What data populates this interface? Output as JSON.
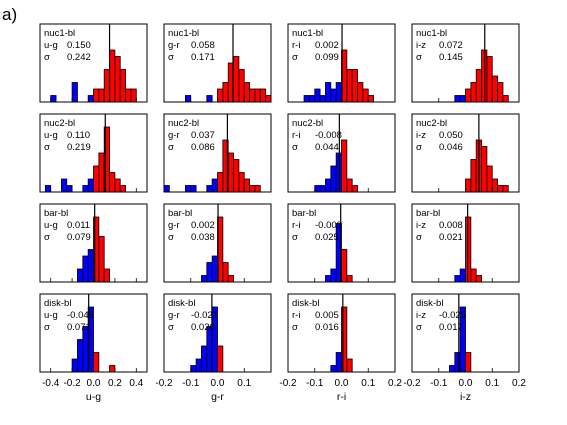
{
  "figure_label": "a)",
  "chart_data": {
    "type": "bar",
    "subtype": "histogram-grid",
    "colors": {
      "negative": "#0000ff",
      "positive": "#ff0000",
      "outline": "#000000"
    },
    "columns": [
      {
        "xlabel": "u-g",
        "xlim": [
          -0.5,
          0.5
        ],
        "ticks": [
          -0.4,
          -0.2,
          0.0,
          0.2,
          0.4
        ],
        "tick_labels": [
          "-0.4",
          "-0.2",
          "0.0",
          "0.2",
          "0.4"
        ],
        "bin_width": 0.05
      },
      {
        "xlabel": "g-r",
        "xlim": [
          -0.2,
          0.2
        ],
        "ticks": [
          -0.2,
          -0.1,
          0.0,
          0.1,
          0.2
        ],
        "tick_labels": [
          "-0.2",
          "-0.1",
          "0.0",
          "0.1",
          ""
        ],
        "bin_width": 0.02
      },
      {
        "xlabel": "r-i",
        "xlim": [
          -0.2,
          0.2
        ],
        "ticks": [
          -0.2,
          -0.1,
          0.0,
          0.1,
          0.2
        ],
        "tick_labels": [
          "-0.2",
          "-0.1",
          "0.0",
          "0.1",
          "0.2"
        ],
        "bin_width": 0.02
      },
      {
        "xlabel": "i-z",
        "xlim": [
          -0.2,
          0.2
        ],
        "ticks": [
          -0.2,
          -0.1,
          0.0,
          0.1,
          0.2
        ],
        "tick_labels": [
          "-0.2",
          "-0.1",
          "0.0",
          "0.1",
          "0.2"
        ],
        "bin_width": 0.02
      }
    ],
    "rows": [
      {
        "region": "nuc1-bl",
        "panels": [
          {
            "color": "u-g",
            "mean": "0.150",
            "sigma": "0.242",
            "bins": [
              [
                -0.4,
                1
              ],
              [
                -0.2,
                3
              ],
              [
                -0.05,
                1
              ],
              [
                0.0,
                2
              ],
              [
                0.05,
                2
              ],
              [
                0.1,
                5
              ],
              [
                0.15,
                8
              ],
              [
                0.2,
                7
              ],
              [
                0.25,
                5
              ],
              [
                0.3,
                2
              ],
              [
                0.35,
                2
              ]
            ]
          },
          {
            "color": "g-r",
            "mean": "0.058",
            "sigma": "0.171",
            "bins": [
              [
                -0.12,
                1
              ],
              [
                -0.04,
                1
              ],
              [
                0.0,
                2
              ],
              [
                0.02,
                3
              ],
              [
                0.04,
                6
              ],
              [
                0.06,
                7
              ],
              [
                0.08,
                5
              ],
              [
                0.1,
                3
              ],
              [
                0.12,
                2
              ],
              [
                0.14,
                2
              ],
              [
                0.16,
                2
              ],
              [
                0.18,
                1
              ]
            ]
          },
          {
            "color": "r-i",
            "mean": "0.002",
            "sigma": "0.099",
            "bins": [
              [
                -0.14,
                1
              ],
              [
                -0.12,
                1
              ],
              [
                -0.1,
                2
              ],
              [
                -0.08,
                1
              ],
              [
                -0.06,
                3
              ],
              [
                -0.04,
                2
              ],
              [
                -0.02,
                3
              ],
              [
                0.0,
                8
              ],
              [
                0.02,
                5
              ],
              [
                0.04,
                5
              ],
              [
                0.06,
                3
              ],
              [
                0.08,
                2
              ],
              [
                0.1,
                1
              ]
            ]
          },
          {
            "color": "i-z",
            "mean": "0.072",
            "sigma": "0.145",
            "bins": [
              [
                -0.04,
                1
              ],
              [
                -0.02,
                1
              ],
              [
                0.0,
                2
              ],
              [
                0.02,
                3
              ],
              [
                0.04,
                5
              ],
              [
                0.06,
                8
              ],
              [
                0.08,
                7
              ],
              [
                0.1,
                4
              ],
              [
                0.12,
                3
              ],
              [
                0.14,
                1
              ]
            ]
          }
        ]
      },
      {
        "region": "nuc2-bl",
        "panels": [
          {
            "color": "u-g",
            "mean": "0.110",
            "sigma": "0.219",
            "bins": [
              [
                -0.45,
                1
              ],
              [
                -0.3,
                2
              ],
              [
                -0.25,
                1
              ],
              [
                -0.1,
                1
              ],
              [
                -0.05,
                2
              ],
              [
                0.0,
                4
              ],
              [
                0.05,
                6
              ],
              [
                0.1,
                10
              ],
              [
                0.15,
                3
              ],
              [
                0.2,
                2
              ],
              [
                0.25,
                1
              ]
            ]
          },
          {
            "color": "g-r",
            "mean": "0.037",
            "sigma": "0.086",
            "bins": [
              [
                -0.2,
                1
              ],
              [
                -0.12,
                1
              ],
              [
                -0.1,
                1
              ],
              [
                -0.04,
                1
              ],
              [
                -0.02,
                2
              ],
              [
                0.0,
                3
              ],
              [
                0.02,
                8
              ],
              [
                0.04,
                6
              ],
              [
                0.06,
                5
              ],
              [
                0.08,
                3
              ],
              [
                0.1,
                2
              ],
              [
                0.12,
                1
              ],
              [
                0.14,
                1
              ]
            ]
          },
          {
            "color": "r-i",
            "mean": "-0.008",
            "sigma": "0.044",
            "bins": [
              [
                -0.1,
                1
              ],
              [
                -0.08,
                1
              ],
              [
                -0.06,
                2
              ],
              [
                -0.04,
                4
              ],
              [
                -0.02,
                6
              ],
              [
                0.0,
                8
              ],
              [
                0.02,
                2
              ],
              [
                0.04,
                1
              ]
            ]
          },
          {
            "color": "i-z",
            "mean": "0.050",
            "sigma": "0.046",
            "bins": [
              [
                0.0,
                2
              ],
              [
                0.02,
                5
              ],
              [
                0.04,
                8
              ],
              [
                0.06,
                7
              ],
              [
                0.08,
                4
              ],
              [
                0.1,
                2
              ],
              [
                0.12,
                1
              ],
              [
                0.14,
                1
              ]
            ]
          }
        ]
      },
      {
        "region": "bar-bl",
        "panels": [
          {
            "color": "u-g",
            "mean": "0.011",
            "sigma": "0.079",
            "bins": [
              [
                -0.15,
                2
              ],
              [
                -0.1,
                4
              ],
              [
                -0.05,
                5
              ],
              [
                0.0,
                10
              ],
              [
                0.05,
                7
              ],
              [
                0.1,
                2
              ]
            ]
          },
          {
            "color": "g-r",
            "mean": "0.002",
            "sigma": "0.038",
            "bins": [
              [
                -0.06,
                1
              ],
              [
                -0.04,
                3
              ],
              [
                -0.02,
                4
              ],
              [
                0.0,
                10
              ],
              [
                0.02,
                3
              ],
              [
                0.04,
                1
              ]
            ]
          },
          {
            "color": "r-i",
            "mean": "-0.003",
            "sigma": "0.025",
            "bins": [
              [
                -0.06,
                1
              ],
              [
                -0.04,
                2
              ],
              [
                -0.02,
                9
              ],
              [
                0.0,
                5
              ],
              [
                0.02,
                1
              ]
            ]
          },
          {
            "color": "i-z",
            "mean": "0.008",
            "sigma": "0.021",
            "bins": [
              [
                -0.04,
                1
              ],
              [
                -0.02,
                2
              ],
              [
                0.0,
                10
              ],
              [
                0.02,
                2
              ],
              [
                0.04,
                1
              ]
            ]
          }
        ]
      },
      {
        "region": "disk-bl",
        "panels": [
          {
            "color": "u-g",
            "mean": "-0.045",
            "sigma": "0.071",
            "bins": [
              [
                -0.2,
                2
              ],
              [
                -0.15,
                5
              ],
              [
                -0.1,
                7
              ],
              [
                -0.05,
                10
              ],
              [
                0.0,
                3
              ],
              [
                0.15,
                1
              ]
            ]
          },
          {
            "color": "g-r",
            "mean": "-0.021",
            "sigma": "0.026",
            "bins": [
              [
                -0.1,
                1
              ],
              [
                -0.08,
                2
              ],
              [
                -0.06,
                4
              ],
              [
                -0.04,
                7
              ],
              [
                -0.02,
                10
              ],
              [
                0.0,
                4
              ]
            ]
          },
          {
            "color": "r-i",
            "mean": "0.005",
            "sigma": "0.016",
            "bins": [
              [
                -0.04,
                1
              ],
              [
                -0.02,
                3
              ],
              [
                0.0,
                10
              ],
              [
                0.02,
                2
              ]
            ]
          },
          {
            "color": "i-z",
            "mean": "-0.025",
            "sigma": "0.017",
            "bins": [
              [
                -0.06,
                1
              ],
              [
                -0.04,
                3
              ],
              [
                -0.02,
                10
              ],
              [
                0.0,
                3
              ]
            ]
          }
        ]
      }
    ]
  }
}
